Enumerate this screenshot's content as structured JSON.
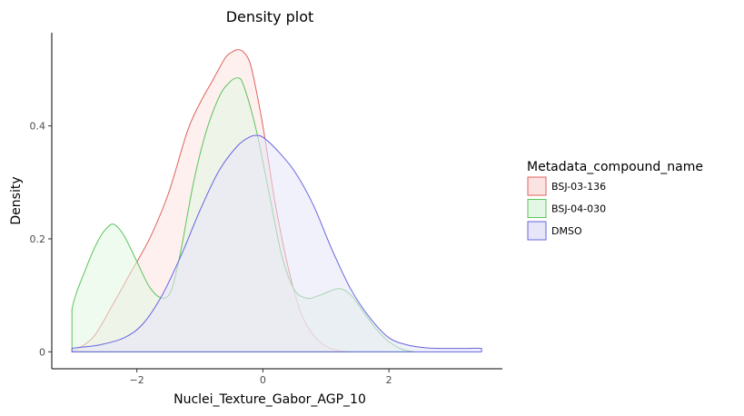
{
  "chart_data": {
    "type": "area",
    "title": "Density plot",
    "xlabel": "Nuclei_Texture_Gabor_AGP_10",
    "ylabel": "Density",
    "xlim": [
      -3.35,
      3.8
    ],
    "ylim": [
      -0.03,
      0.565
    ],
    "x_ticks": [
      {
        "value": -2,
        "label": "−2"
      },
      {
        "value": 0,
        "label": "0"
      },
      {
        "value": 2,
        "label": "2"
      }
    ],
    "y_ticks": [
      {
        "value": 0,
        "label": "0"
      },
      {
        "value": 0.2,
        "label": "0.2"
      },
      {
        "value": 0.4,
        "label": "0.4"
      }
    ],
    "grid": false,
    "legend": {
      "title": "Metadata_compound_name",
      "position": "right"
    },
    "series": [
      {
        "name": "BSJ-03-136",
        "color": "#e0625c",
        "fill": "#fbe3e2",
        "x": [
          -3.03,
          -2.7,
          -2.4,
          -2.1,
          -1.8,
          -1.5,
          -1.2,
          -1.0,
          -0.8,
          -0.6,
          -0.5,
          -0.4,
          -0.3,
          -0.2,
          -0.1,
          0.0,
          0.1,
          0.2,
          0.4,
          0.6,
          0.8,
          1.0,
          1.2,
          1.4
        ],
        "y": [
          0.0,
          0.025,
          0.08,
          0.14,
          0.2,
          0.28,
          0.39,
          0.44,
          0.48,
          0.52,
          0.53,
          0.535,
          0.53,
          0.51,
          0.46,
          0.4,
          0.33,
          0.26,
          0.15,
          0.07,
          0.03,
          0.01,
          0.002,
          0.0
        ]
      },
      {
        "name": "BSJ-04-030",
        "color": "#5dc35d",
        "fill": "#e4f7e4",
        "x": [
          -3.03,
          -3.03,
          -2.8,
          -2.6,
          -2.45,
          -2.35,
          -2.2,
          -2.0,
          -1.8,
          -1.6,
          -1.45,
          -1.3,
          -1.1,
          -0.9,
          -0.7,
          -0.55,
          -0.4,
          -0.3,
          -0.1,
          0.1,
          0.3,
          0.5,
          0.7,
          0.9,
          1.2,
          1.4,
          1.6,
          1.8,
          2.0,
          2.2,
          2.4
        ],
        "y": [
          0.0,
          0.075,
          0.15,
          0.2,
          0.222,
          0.225,
          0.205,
          0.16,
          0.115,
          0.095,
          0.11,
          0.18,
          0.3,
          0.39,
          0.45,
          0.475,
          0.485,
          0.47,
          0.39,
          0.28,
          0.17,
          0.11,
          0.095,
          0.1,
          0.112,
          0.1,
          0.07,
          0.04,
          0.018,
          0.005,
          0.0
        ]
      },
      {
        "name": "DMSO",
        "color": "#6666e0",
        "fill": "#e6e6f8",
        "x": [
          -3.03,
          -3.03,
          -2.6,
          -2.2,
          -1.9,
          -1.6,
          -1.3,
          -1.0,
          -0.7,
          -0.4,
          -0.2,
          -0.1,
          0.0,
          0.2,
          0.5,
          0.8,
          1.1,
          1.4,
          1.7,
          2.0,
          2.3,
          2.6,
          2.9,
          3.2,
          3.47,
          3.47
        ],
        "y": [
          0.0,
          0.006,
          0.012,
          0.025,
          0.05,
          0.1,
          0.17,
          0.25,
          0.32,
          0.365,
          0.381,
          0.383,
          0.38,
          0.36,
          0.32,
          0.26,
          0.18,
          0.11,
          0.06,
          0.025,
          0.012,
          0.007,
          0.006,
          0.006,
          0.006,
          0.0
        ]
      }
    ]
  }
}
